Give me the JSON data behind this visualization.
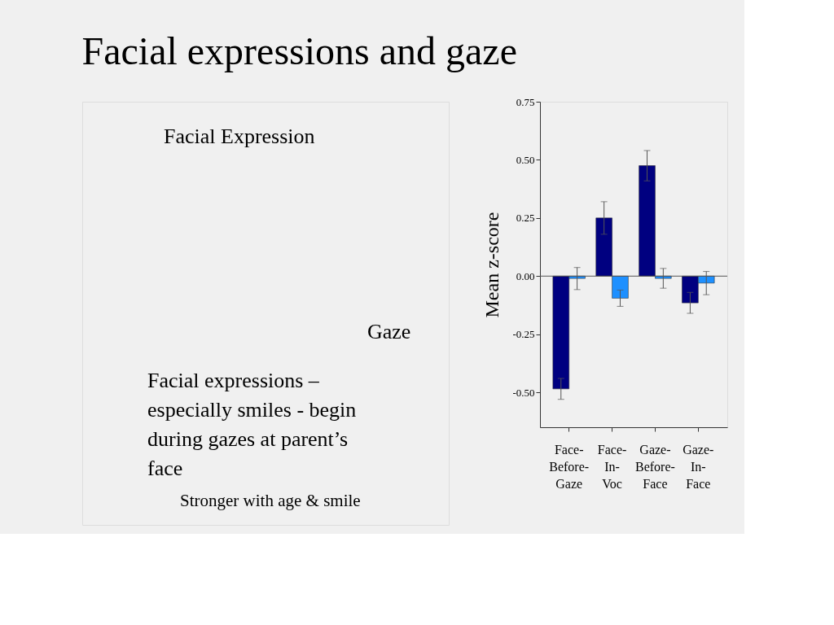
{
  "chart_data": {
    "type": "bar",
    "title": "Facial expressions and gaze",
    "ylabel": "Mean z-score",
    "categories": [
      "Face-Before-Gaze",
      "Face-In-Voc",
      "Gaze-Before-Face",
      "Gaze-In-Face"
    ],
    "series": [
      {
        "color": "#000080",
        "values": [
          -0.485,
          0.25,
          0.475,
          -0.115
        ],
        "errors": [
          [
            -0.53,
            -0.44
          ],
          [
            0.18,
            0.32
          ],
          [
            0.41,
            0.54
          ],
          [
            -0.16,
            -0.07
          ]
        ]
      },
      {
        "color": "#1e90ff",
        "values": [
          -0.01,
          -0.095,
          -0.01,
          -0.03
        ],
        "errors": [
          [
            -0.058,
            0.037
          ],
          [
            -0.13,
            -0.06
          ],
          [
            -0.052,
            0.033
          ],
          [
            -0.08,
            0.02
          ]
        ]
      }
    ],
    "ylim": [
      -0.65,
      0.75
    ],
    "yticks": [
      {
        "value": -0.5,
        "label": "-0.50"
      },
      {
        "value": -0.25,
        "label": "-0.25"
      },
      {
        "value": 0,
        "label": "0.00"
      },
      {
        "value": 0.25,
        "label": "0.25"
      },
      {
        "value": 0.5,
        "label": "0.50"
      },
      {
        "value": 0.75,
        "label": "0.75"
      }
    ],
    "ref_lines": [
      {
        "axis": "y",
        "value": 0,
        "label": null,
        "color": "#555555"
      }
    ],
    "grid": false,
    "legend": false,
    "annotations": [
      "Facial Expression",
      "Gaze",
      "Facial expressions – especially smiles - begin during gazes at parent’s face",
      "Stronger with age & smile"
    ]
  }
}
